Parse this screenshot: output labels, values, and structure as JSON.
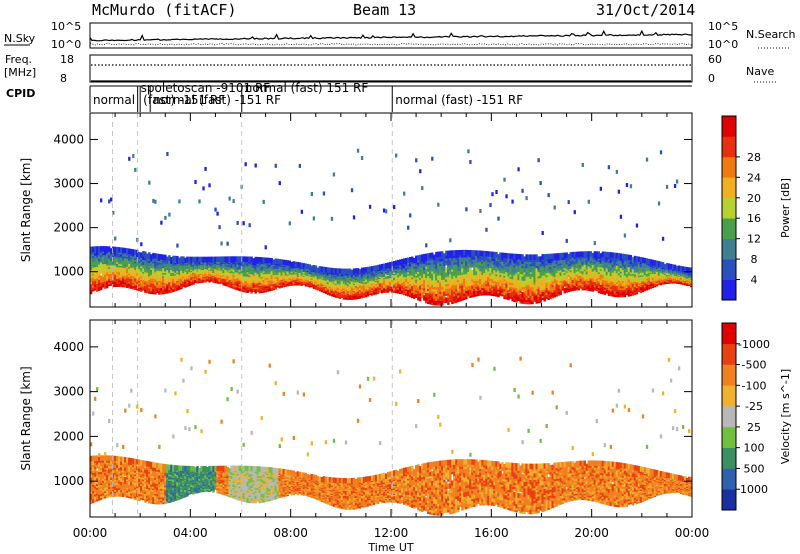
{
  "header": {
    "station": "McMurdo (fitACF)",
    "beam": "Beam 13",
    "date": "31/Oct/2014"
  },
  "summary": {
    "nsky_label": "N.Sky",
    "nsearch_label": "N.Search",
    "nsky_ticks": [
      "10^5",
      "10^0"
    ],
    "nsearch_ticks": [
      "10^5",
      "10^0"
    ],
    "freq_label": "Freq.",
    "freq_unit": "[MHz]",
    "freq_ticks": [
      "18",
      "8"
    ],
    "nave_label": "Nave",
    "nave_ticks": [
      "60",
      "0"
    ],
    "cpid_label": "CPID",
    "cpid_segments": [
      {
        "label": "normal",
        "start_hour": 0.0
      },
      {
        "label": "spoletoscan -9101 RF",
        "start_hour": 1.9
      },
      {
        "label": "(fast) -151 RF",
        "start_hour": 2.0
      },
      {
        "label": "normal (fast) -151 RF",
        "start_hour": 2.4
      },
      {
        "label": "normal (fast) 151 RF",
        "start_hour": 6.05
      },
      {
        "label": "normal (fast) -151 RF",
        "start_hour": 12.05
      }
    ]
  },
  "chart_data": [
    {
      "type": "heatmap",
      "title": "",
      "xlabel": "Time UT",
      "ylabel": "Slant Range [km]",
      "x_ticks": [
        "00:00",
        "04:00",
        "08:00",
        "12:00",
        "16:00",
        "20:00",
        "00:00"
      ],
      "y_ticks": [
        1000,
        2000,
        3000,
        4000
      ],
      "xlim": [
        0,
        24
      ],
      "ylim": [
        200,
        4600
      ],
      "colorbar_label": "Power [dB]",
      "colorbar_ticks": [
        4,
        8,
        12,
        16,
        20,
        24,
        28
      ],
      "colorbar_colors": [
        "#2020e8",
        "#2a4fc0",
        "#3f7f8f",
        "#4aa04a",
        "#b8d030",
        "#f0b020",
        "#f07a10",
        "#e83010",
        "#e00000"
      ],
      "dominant_band_km": [
        500,
        1400
      ]
    },
    {
      "type": "heatmap",
      "title": "",
      "xlabel": "Time UT",
      "ylabel": "Slant Range [km]",
      "x_ticks": [
        "00:00",
        "04:00",
        "08:00",
        "12:00",
        "16:00",
        "20:00",
        "00:00"
      ],
      "y_ticks": [
        1000,
        2000,
        3000,
        4000
      ],
      "xlim": [
        0,
        24
      ],
      "ylim": [
        200,
        4600
      ],
      "colorbar_label": "Velocity [m s^-1]",
      "colorbar_ticks": [
        "1000",
        "500",
        "100",
        "25",
        "-25",
        "-100",
        "-500",
        "-1000"
      ],
      "colorbar_colors": [
        "#1a2fa0",
        "#3060b0",
        "#3a9060",
        "#70c040",
        "#b8b8b8",
        "#f0b030",
        "#f08020",
        "#e84010",
        "#e00000"
      ],
      "dominant_band_km": [
        500,
        1400
      ]
    }
  ]
}
